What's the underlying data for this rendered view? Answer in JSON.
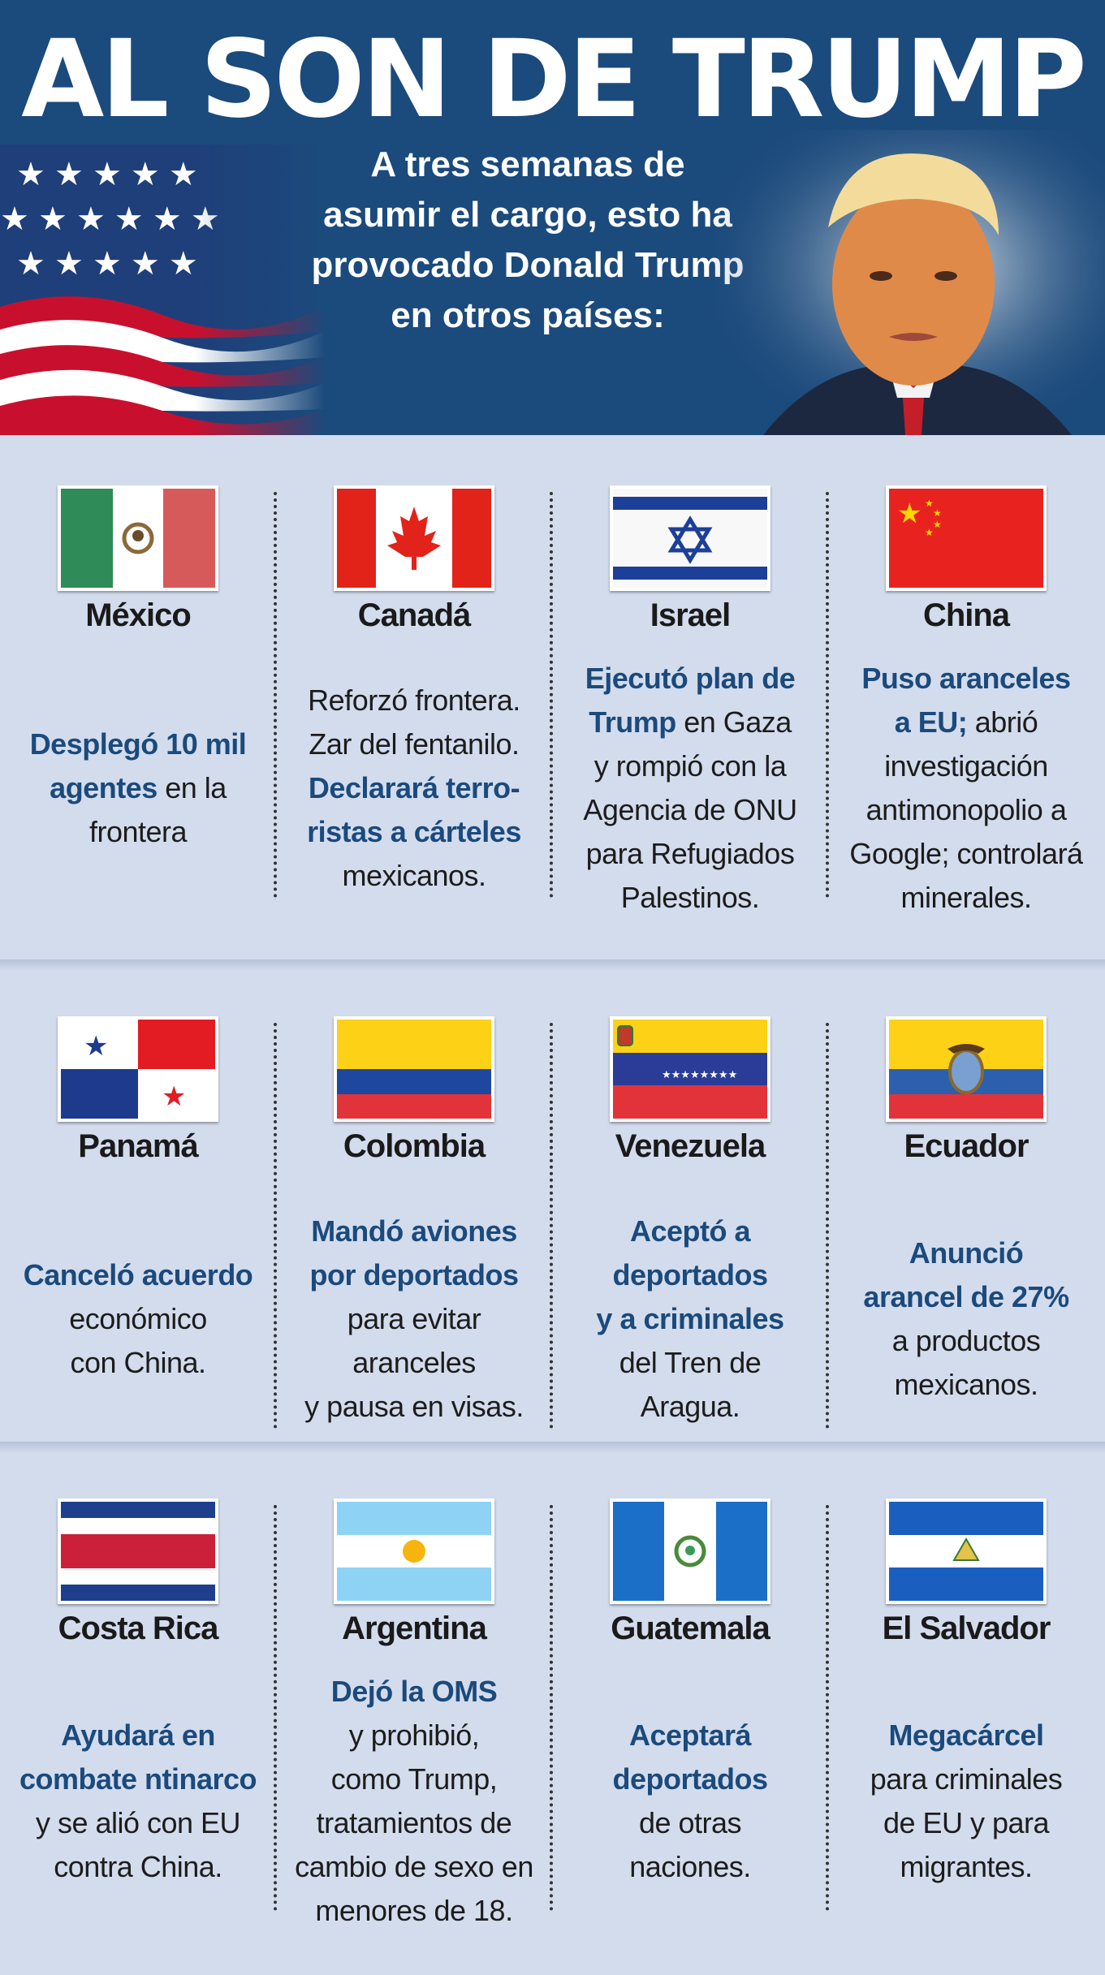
{
  "header": {
    "title": "AL SON DE TRUMP",
    "subtitle": [
      "A tres semanas de",
      "asumir el cargo, esto ha",
      "provocado Donald Trump",
      "en otros países:"
    ]
  },
  "countries": [
    {
      "name": "México",
      "flag": "mexico-flag",
      "lines": [
        {
          "hl": "Desplegó 10 mil"
        },
        {
          "hl": "agentes",
          "text": " en la"
        },
        {
          "text": "frontera"
        }
      ]
    },
    {
      "name": "Canadá",
      "flag": "canada-flag",
      "lines": [
        {
          "text": "Reforzó frontera."
        },
        {
          "text": "Zar del fentanilo."
        },
        {
          "hl": "Declarará terro-"
        },
        {
          "hl": "ristas a cárteles"
        },
        {
          "text": "mexicanos."
        }
      ]
    },
    {
      "name": "Israel",
      "flag": "israel-flag",
      "lines": [
        {
          "hl": "Ejecutó plan de"
        },
        {
          "hl": "Trump",
          "text": " en Gaza"
        },
        {
          "text": "y rompió con la"
        },
        {
          "text": "Agencia de ONU"
        },
        {
          "text": "para Refugiados"
        },
        {
          "text": "Palestinos."
        }
      ]
    },
    {
      "name": "China",
      "flag": "china-flag",
      "lines": [
        {
          "hl": "Puso aranceles"
        },
        {
          "hl": "a EU;",
          "text": " abrió"
        },
        {
          "text": "investigación"
        },
        {
          "text": "antimonopolio a"
        },
        {
          "text": "Google; controlará"
        },
        {
          "text": "minerales."
        }
      ]
    },
    {
      "name": "Panamá",
      "flag": "panama-flag",
      "lines": [
        {
          "hl": "Canceló acuerdo"
        },
        {
          "text": "económico"
        },
        {
          "text": "con China."
        }
      ]
    },
    {
      "name": "Colombia",
      "flag": "colombia-flag",
      "lines": [
        {
          "hl": "Mandó aviones"
        },
        {
          "hl": "por deportados"
        },
        {
          "text": "para evitar"
        },
        {
          "text": "aranceles"
        },
        {
          "text": "y pausa en visas."
        }
      ]
    },
    {
      "name": "Venezuela",
      "flag": "venezuela-flag",
      "lines": [
        {
          "hl": "Aceptó a"
        },
        {
          "hl": "deportados"
        },
        {
          "hl": "y a criminales"
        },
        {
          "text": "del Tren de"
        },
        {
          "text": "Aragua."
        }
      ]
    },
    {
      "name": "Ecuador",
      "flag": "ecuador-flag",
      "lines": [
        {
          "hl": "Anunció"
        },
        {
          "hl": "arancel de 27%"
        },
        {
          "text": "a productos"
        },
        {
          "text": "mexicanos."
        }
      ]
    },
    {
      "name": "Costa Rica",
      "flag": "costa-rica-flag",
      "lines": [
        {
          "hl": "Ayudará en"
        },
        {
          "hl": "combate ntinarco"
        },
        {
          "text": "y se alió con EU"
        },
        {
          "text": "contra China."
        }
      ]
    },
    {
      "name": "Argentina",
      "flag": "argentina-flag",
      "lines": [
        {
          "hl": "Dejó la OMS"
        },
        {
          "text": "y prohibió,"
        },
        {
          "text": "como Trump,"
        },
        {
          "text": "tratamientos de"
        },
        {
          "text": "cambio de sexo en"
        },
        {
          "text": "menores de 18."
        }
      ]
    },
    {
      "name": "Guatemala",
      "flag": "guatemala-flag",
      "lines": [
        {
          "hl": "Aceptará"
        },
        {
          "hl": "deportados"
        },
        {
          "text": "de otras"
        },
        {
          "text": "naciones."
        }
      ]
    },
    {
      "name": "El Salvador",
      "flag": "el-salvador-flag",
      "lines": [
        {
          "hl": "Megacárcel"
        },
        {
          "text": "para criminales"
        },
        {
          "text": "de EU y para"
        },
        {
          "text": "migrantes."
        }
      ]
    }
  ],
  "colors": {
    "header_bg": "#1b4a7c",
    "body_bg": "#d3dced",
    "highlight": "#1b4a7c"
  }
}
